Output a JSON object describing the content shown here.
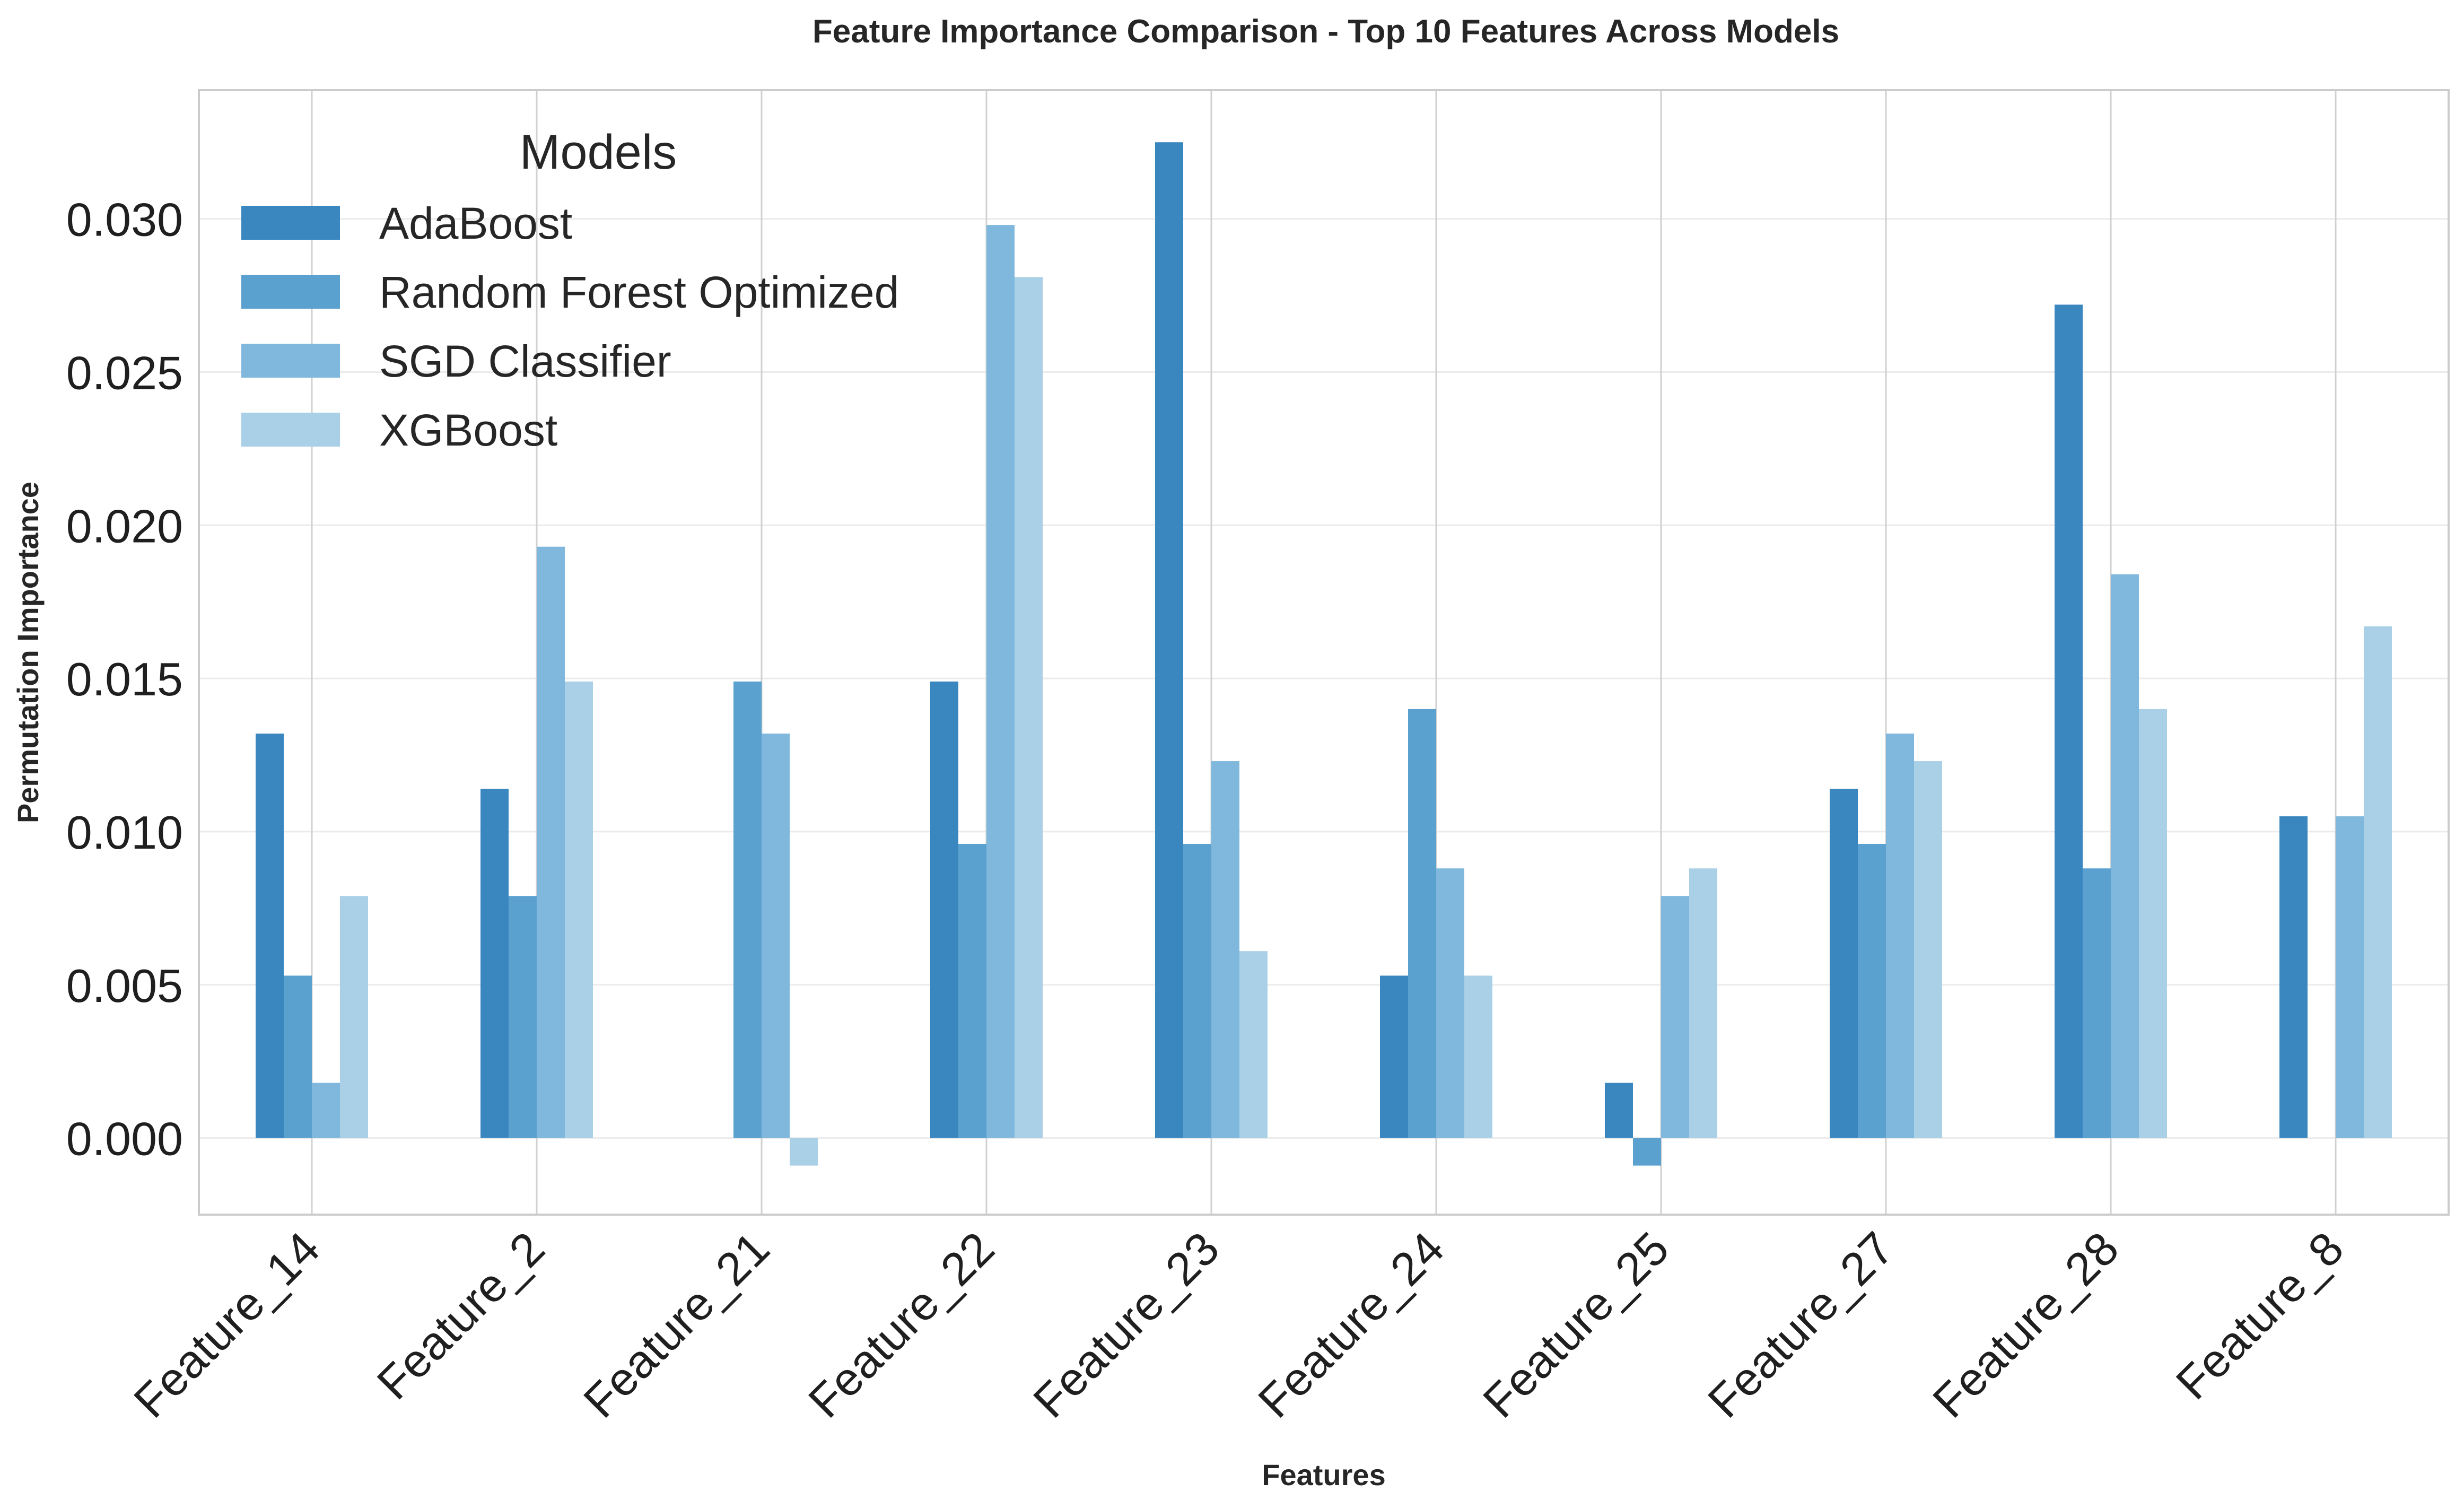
{
  "chart_data": {
    "type": "bar",
    "title": "Feature Importance Comparison - Top 10 Features Across Models",
    "xlabel": "Features",
    "ylabel": "Permutation Importance",
    "categories": [
      "Feature_14",
      "Feature_2",
      "Feature_21",
      "Feature_22",
      "Feature_23",
      "Feature_24",
      "Feature_25",
      "Feature_27",
      "Feature_28",
      "Feature_8"
    ],
    "series": [
      {
        "name": "AdaBoost",
        "color": "#3a87c0",
        "values": [
          0.0132,
          0.0114,
          0.0,
          0.0149,
          0.0325,
          0.0053,
          0.0018,
          0.0114,
          0.0272,
          0.0105
        ]
      },
      {
        "name": "Random Forest Optimized",
        "color": "#5aa1d0",
        "values": [
          0.0053,
          0.0079,
          0.0149,
          0.0096,
          0.0096,
          0.014,
          -0.0009,
          0.0096,
          0.0088,
          0.0
        ]
      },
      {
        "name": "SGD Classifier",
        "color": "#7fb8dc",
        "values": [
          0.0018,
          0.0193,
          0.0132,
          0.0298,
          0.0123,
          0.0088,
          0.0079,
          0.0132,
          0.0184,
          0.0105
        ]
      },
      {
        "name": "XGBoost",
        "color": "#a9d0e6",
        "values": [
          0.0079,
          0.0149,
          -0.0009,
          0.0281,
          0.0061,
          0.0053,
          0.0088,
          0.0123,
          0.014,
          0.0167
        ]
      }
    ],
    "ylim": [
      -0.0025,
      0.0342
    ],
    "yticks": [
      "0.000",
      "0.005",
      "0.010",
      "0.015",
      "0.020",
      "0.025",
      "0.030"
    ],
    "ytick_values": [
      0,
      0.005,
      0.01,
      0.015,
      0.02,
      0.025,
      0.03
    ],
    "legend": {
      "title": "Models",
      "placement": "top-left"
    },
    "grid": true
  }
}
